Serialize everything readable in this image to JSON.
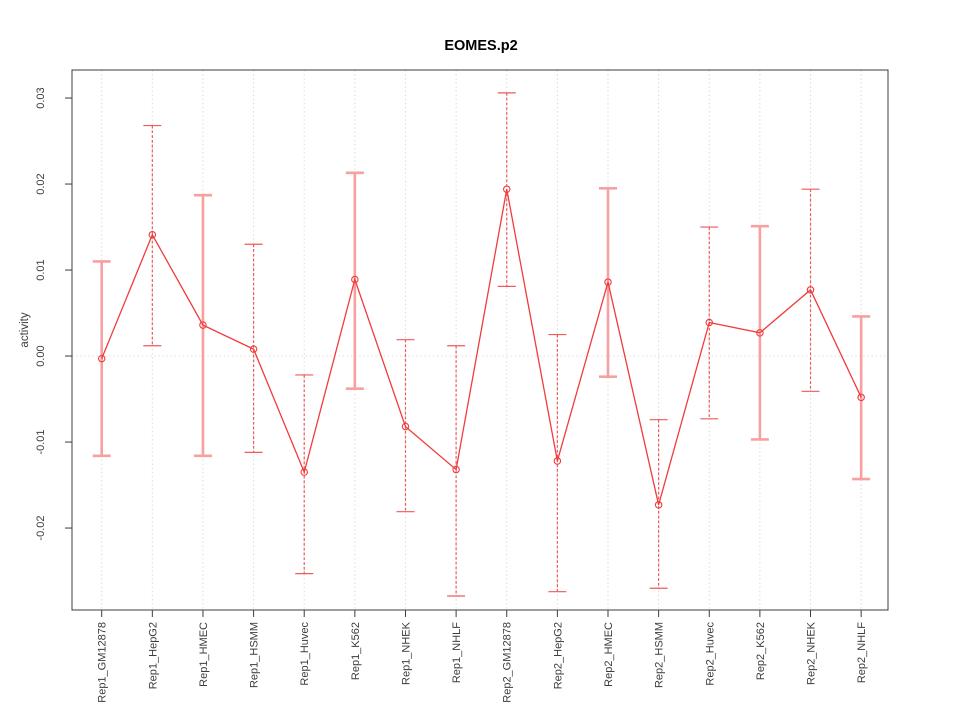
{
  "title": "EOMES.p2",
  "colors": {
    "series_red": "#f03c3c",
    "errorbar_thin": "#ef5a5a",
    "errorbar_thick": "#f8a0a0",
    "gridline": "#dcdcdc",
    "axis": "#3c3c3c",
    "title_text": "#000000",
    "background": "#ffffff"
  },
  "chart_data": {
    "type": "line",
    "title": "EOMES.p2",
    "xlabel": "",
    "ylabel": "activity",
    "ylim": [
      -0.02953,
      0.03326
    ],
    "grid": "zero-line dotted + vertical dotted category guides",
    "legend": "none",
    "marker": "open-circle",
    "yticks": [
      0.03,
      0.02,
      0.01,
      0.0,
      -0.01,
      -0.02
    ],
    "ytick_labels": [
      "0.03",
      "0.02",
      "0.01",
      "0.00",
      "-0.01",
      "-0.02"
    ],
    "categories": [
      "Rep1_GM12878",
      "Rep1_HepG2",
      "Rep1_HMEC",
      "Rep1_HSMM",
      "Rep1_Huvec",
      "Rep1_K562",
      "Rep1_NHEK",
      "Rep1_NHLF",
      "Rep2_GM12878",
      "Rep2_HepG2",
      "Rep2_HMEC",
      "Rep2_HSMM",
      "Rep2_Huvec",
      "Rep2_K562",
      "Rep2_NHEK",
      "Rep2_NHLF"
    ],
    "series": [
      {
        "name": "activity",
        "values": [
          -0.0003,
          0.0141,
          0.0036,
          0.0008,
          -0.0135,
          0.0089,
          -0.0082,
          -0.0132,
          0.0194,
          -0.0122,
          0.0086,
          -0.0173,
          0.0039,
          0.0027,
          0.0077,
          -0.0048
        ],
        "ci_low": [
          -0.0116,
          0.0012,
          -0.0116,
          -0.0112,
          -0.0253,
          -0.0038,
          -0.0181,
          -0.0279,
          0.0081,
          -0.0274,
          -0.0024,
          -0.027,
          -0.0073,
          -0.0097,
          -0.0041,
          -0.0143
        ],
        "ci_high": [
          0.011,
          0.0268,
          0.0187,
          0.013,
          -0.0022,
          0.0213,
          0.0019,
          0.0012,
          0.0306,
          0.0025,
          0.0195,
          -0.0074,
          0.015,
          0.0151,
          0.0194,
          0.0046
        ],
        "bar_style": [
          "thick",
          "thin",
          "thick",
          "thin",
          "thin",
          "thick",
          "thin",
          "thin",
          "thin",
          "thin",
          "thick",
          "thin",
          "thin",
          "thick",
          "thin",
          "thick"
        ]
      }
    ]
  }
}
